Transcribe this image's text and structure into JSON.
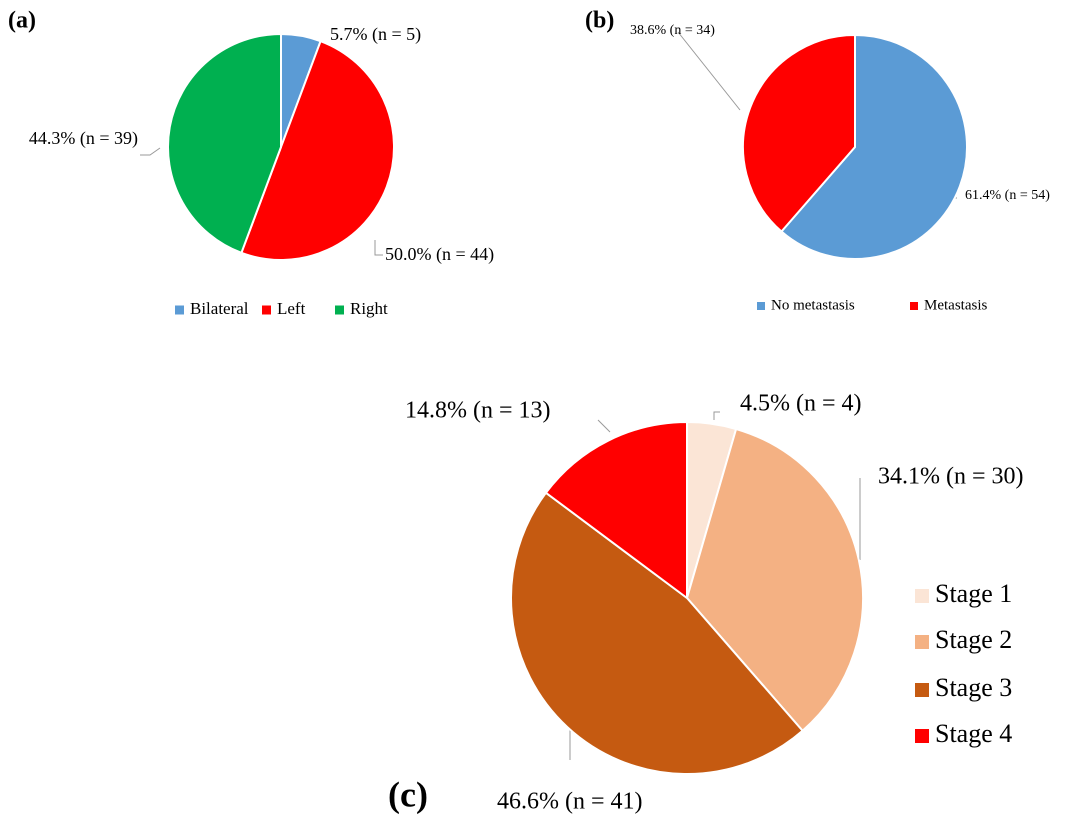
{
  "chart_data": [
    {
      "type": "pie",
      "panel_label": "(a)",
      "categories": [
        "Bilateral",
        "Left",
        "Right"
      ],
      "values": [
        5.7,
        50.0,
        44.3
      ],
      "value_labels": [
        "5.7% (n = 5)",
        "50.0% (n = 44)",
        "44.3% (n = 39)"
      ],
      "colors": [
        "#5b9bd5",
        "#ff0000",
        "#00b050"
      ],
      "legend": "bottom"
    },
    {
      "type": "pie",
      "panel_label": "(b)",
      "categories": [
        "No metastasis",
        "Metastasis"
      ],
      "values": [
        61.4,
        38.6
      ],
      "value_labels": [
        "61.4% (n = 54)",
        "38.6% (n = 34)"
      ],
      "colors": [
        "#5b9bd5",
        "#ff0000"
      ],
      "legend": "bottom"
    },
    {
      "type": "pie",
      "panel_label": "(c)",
      "categories": [
        "Stage 1",
        "Stage 2",
        "Stage 3",
        "Stage 4"
      ],
      "values": [
        4.5,
        34.1,
        46.6,
        14.8
      ],
      "value_labels": [
        "4.5% (n = 4)",
        "34.1% (n = 30)",
        "46.6% (n = 41)",
        "14.8% (n = 13)"
      ],
      "colors": [
        "#fbe5d6",
        "#f4b183",
        "#c55a11",
        "#ff0000"
      ],
      "legend": "right"
    }
  ]
}
